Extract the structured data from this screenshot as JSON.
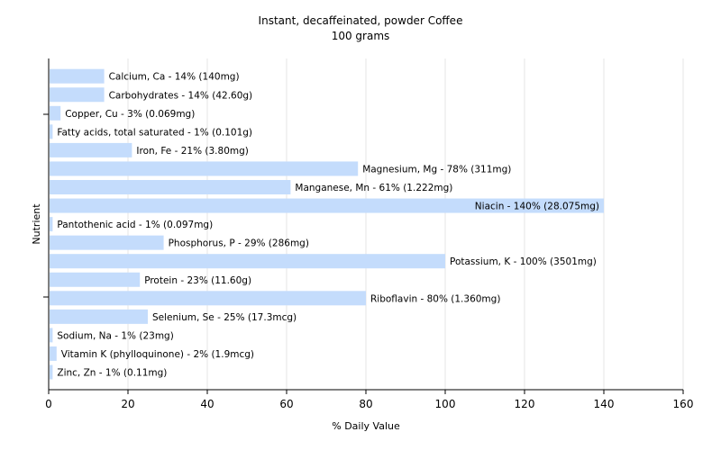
{
  "chart_data": {
    "type": "bar",
    "orientation": "horizontal",
    "title": "Instant, decaffeinated, powder Coffee",
    "subtitle": "100 grams",
    "xlabel": "% Daily Value",
    "ylabel": "Nutrient",
    "xlim": [
      0,
      160
    ],
    "xticks": [
      0,
      20,
      40,
      60,
      80,
      100,
      120,
      140,
      160
    ],
    "grid": true,
    "bar_color": "#c4dcfc",
    "gridline_color": "#e6e6e6",
    "categories": [
      "Calcium, Ca",
      "Carbohydrates",
      "Copper, Cu",
      "Fatty acids, total saturated",
      "Iron, Fe",
      "Magnesium, Mg",
      "Manganese, Mn",
      "Niacin",
      "Pantothenic acid",
      "Phosphorus, P",
      "Potassium, K",
      "Protein",
      "Riboflavin",
      "Selenium, Se",
      "Sodium, Na",
      "Vitamin K (phylloquinone)",
      "Zinc, Zn"
    ],
    "values": [
      14,
      14,
      3,
      1,
      21,
      78,
      61,
      140,
      1,
      29,
      100,
      23,
      80,
      25,
      1,
      2,
      1
    ],
    "labels": [
      "Calcium, Ca - 14% (140mg)",
      "Carbohydrates - 14% (42.60g)",
      "Copper, Cu - 3% (0.069mg)",
      "Fatty acids, total saturated - 1% (0.101g)",
      "Iron, Fe - 21% (3.80mg)",
      "Magnesium, Mg - 78% (311mg)",
      "Manganese, Mn - 61% (1.222mg)",
      "Niacin - 140% (28.075mg)",
      "Pantothenic acid - 1% (0.097mg)",
      "Phosphorus, P - 29% (286mg)",
      "Potassium, K - 100% (3501mg)",
      "Protein - 23% (11.60g)",
      "Riboflavin - 80% (1.360mg)",
      "Selenium, Se - 25% (17.3mcg)",
      "Sodium, Na - 1% (23mg)",
      "Vitamin K (phylloquinone) - 2% (1.9mcg)",
      "Zinc, Zn - 1% (0.11mg)"
    ]
  }
}
